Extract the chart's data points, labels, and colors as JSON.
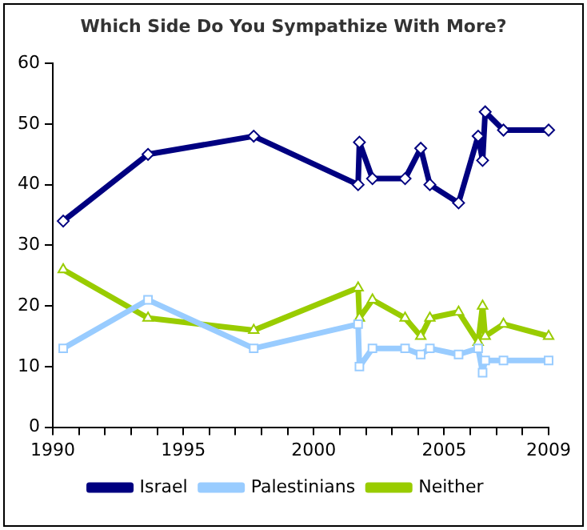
{
  "chart_data": {
    "type": "line",
    "title": "Which Side Do You Sympathize With More?",
    "x": [
      1990.4,
      1993.65,
      1997.7,
      2001.7,
      2001.75,
      2002.25,
      2003.5,
      2004.1,
      2004.45,
      2005.55,
      2006.3,
      2006.47,
      2006.57,
      2007.27,
      2009
    ],
    "series": [
      {
        "name": "Israel",
        "color": "#000080",
        "marker": "diamond",
        "values": [
          34,
          45,
          48,
          40,
          47,
          41,
          41,
          46,
          40,
          37,
          48,
          44,
          52,
          49,
          49
        ]
      },
      {
        "name": "Palestinians",
        "color": "#99ccff",
        "marker": "square",
        "values": [
          13,
          21,
          13,
          17,
          10,
          13,
          13,
          12,
          13,
          12,
          13,
          9,
          11,
          11,
          11
        ]
      },
      {
        "name": "Neither",
        "color": "#99cc00",
        "marker": "triangle",
        "values": [
          26,
          18,
          16,
          23,
          18,
          21,
          18,
          15,
          18,
          19,
          14,
          20,
          15,
          17,
          15
        ]
      }
    ],
    "xlim": [
      1990,
      2009
    ],
    "xticks": [
      1990,
      {
        "value": 1991,
        "label": null
      },
      {
        "value": 1992,
        "label": null
      },
      {
        "value": 1993,
        "label": null
      },
      {
        "value": 1994,
        "label": null
      },
      1995,
      {
        "value": 1996,
        "label": null
      },
      {
        "value": 1997,
        "label": null
      },
      {
        "value": 1998,
        "label": null
      },
      {
        "value": 1999,
        "label": null
      },
      2000,
      {
        "value": 2001,
        "label": null
      },
      {
        "value": 2002,
        "label": null
      },
      {
        "value": 2003,
        "label": null
      },
      {
        "value": 2004,
        "label": null
      },
      2005,
      {
        "value": 2006,
        "label": null
      },
      {
        "value": 2007,
        "label": null
      },
      {
        "value": 2008,
        "label": null
      },
      2009
    ],
    "ylim": [
      0,
      60
    ],
    "yticks": [
      0,
      10,
      20,
      30,
      40,
      50,
      60
    ],
    "grid": false,
    "legend": "bottom",
    "line_style": "solid"
  }
}
